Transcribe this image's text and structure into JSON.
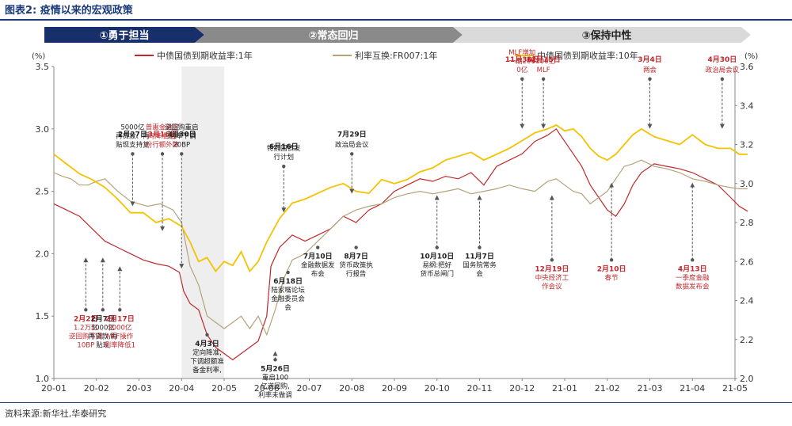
{
  "page": {
    "title": "图表2:  疫情以来的宏观政策",
    "source": "资料来源:新华社,华泰研究"
  },
  "colors": {
    "one_year": "#c0282d",
    "fr007": "#b5a27a",
    "ten_year": "#f5c200",
    "annotation_red": "#c0282d",
    "annotation_black": "#222222",
    "phase1_fill": "#17306b",
    "phase2_fill": "#8a8a8a",
    "phase3_fill": "#dadada",
    "accent": "#1a3a7a"
  },
  "phases": [
    {
      "label": "①勇于担当",
      "text_color": "#ffffff"
    },
    {
      "label": "②常态回归",
      "text_color": "#ffffff"
    },
    {
      "label": "③保持中性",
      "text_color": "#222222"
    }
  ],
  "chart_data": {
    "type": "line",
    "y_unit_left": "(%)",
    "y_unit_right": "(%)",
    "x_ticks": [
      "20-01",
      "20-02",
      "20-03",
      "20-04",
      "20-05",
      "20-06",
      "20-07",
      "20-08",
      "20-09",
      "20-10",
      "20-11",
      "20-12",
      "21-01",
      "21-02",
      "21-03",
      "21-04",
      "21-05"
    ],
    "y_left": {
      "min": 1.0,
      "max": 3.5,
      "ticks": [
        "1.0",
        "1.5",
        "2.0",
        "2.5",
        "3.0",
        "3.5"
      ]
    },
    "y_right": {
      "min": 2.0,
      "max": 3.6,
      "ticks": [
        "2.0",
        "2.2",
        "2.4",
        "2.6",
        "2.8",
        "3.0",
        "3.2",
        "3.4",
        "3.6"
      ]
    },
    "series": [
      {
        "name": "中债国债到期收益率:1年",
        "axis": "left",
        "color_key": "one_year",
        "x": [
          0,
          0.3,
          0.6,
          0.9,
          1.2,
          1.5,
          1.8,
          2.1,
          2.4,
          2.7,
          2.95,
          3.05,
          3.2,
          3.4,
          3.6,
          3.8,
          4.0,
          4.2,
          4.4,
          4.6,
          4.8,
          5.0,
          5.1,
          5.3,
          5.6,
          5.9,
          6.2,
          6.5,
          6.8,
          7.1,
          7.4,
          7.7,
          8.0,
          8.3,
          8.6,
          8.9,
          9.2,
          9.5,
          9.8,
          10.1,
          10.4,
          10.7,
          11.0,
          11.3,
          11.6,
          11.8,
          12.0,
          12.2,
          12.4,
          12.6,
          12.8,
          13.0,
          13.2,
          13.4,
          13.6,
          13.8,
          14.1,
          14.4,
          14.7,
          15.0,
          15.3,
          15.6,
          15.9,
          16.1,
          16.3
        ],
        "y": [
          2.4,
          2.35,
          2.3,
          2.2,
          2.1,
          2.05,
          2.0,
          1.95,
          1.92,
          1.9,
          1.85,
          1.7,
          1.6,
          1.55,
          1.35,
          1.25,
          1.2,
          1.15,
          1.2,
          1.25,
          1.3,
          1.5,
          1.9,
          2.05,
          2.15,
          2.1,
          2.15,
          2.2,
          2.3,
          2.25,
          2.35,
          2.4,
          2.5,
          2.55,
          2.6,
          2.58,
          2.62,
          2.6,
          2.65,
          2.55,
          2.7,
          2.75,
          2.8,
          2.9,
          2.95,
          3.0,
          2.9,
          2.8,
          2.7,
          2.55,
          2.45,
          2.35,
          2.3,
          2.4,
          2.55,
          2.65,
          2.72,
          2.7,
          2.68,
          2.65,
          2.6,
          2.55,
          2.45,
          2.38,
          2.34
        ]
      },
      {
        "name": "利率互换:FR007:1年",
        "axis": "left",
        "color_key": "fr007",
        "x": [
          0,
          0.2,
          0.4,
          0.6,
          0.8,
          1.0,
          1.2,
          1.5,
          1.8,
          2.0,
          2.2,
          2.5,
          2.8,
          3.0,
          3.2,
          3.4,
          3.6,
          3.8,
          4.0,
          4.2,
          4.4,
          4.6,
          4.8,
          5.0,
          5.2,
          5.4,
          5.6,
          5.9,
          6.2,
          6.5,
          6.8,
          7.1,
          7.4,
          7.7,
          8.0,
          8.3,
          8.6,
          8.9,
          9.2,
          9.5,
          9.8,
          10.1,
          10.4,
          10.7,
          11.0,
          11.3,
          11.6,
          11.8,
          12.0,
          12.2,
          12.4,
          12.6,
          12.8,
          13.0,
          13.2,
          13.4,
          13.6,
          13.8,
          14.1,
          14.4,
          14.7,
          15.0,
          15.3,
          15.6,
          15.9,
          16.1,
          16.3
        ],
        "y": [
          2.65,
          2.62,
          2.6,
          2.55,
          2.55,
          2.58,
          2.6,
          2.5,
          2.42,
          2.4,
          2.38,
          2.4,
          2.35,
          2.25,
          1.9,
          1.75,
          1.5,
          1.45,
          1.4,
          1.45,
          1.5,
          1.4,
          1.5,
          1.35,
          1.55,
          1.8,
          1.95,
          2.0,
          2.1,
          2.2,
          2.3,
          2.35,
          2.38,
          2.4,
          2.45,
          2.48,
          2.5,
          2.48,
          2.5,
          2.52,
          2.48,
          2.5,
          2.52,
          2.55,
          2.52,
          2.5,
          2.58,
          2.6,
          2.55,
          2.5,
          2.48,
          2.4,
          2.45,
          2.5,
          2.6,
          2.7,
          2.72,
          2.75,
          2.7,
          2.68,
          2.65,
          2.6,
          2.58,
          2.55,
          2.53,
          2.52,
          2.52
        ]
      },
      {
        "name": "中债国债到期收益率:10年",
        "axis": "right",
        "color_key": "ten_year",
        "x": [
          0,
          0.3,
          0.6,
          0.9,
          1.2,
          1.5,
          1.8,
          2.1,
          2.4,
          2.7,
          3.0,
          3.2,
          3.4,
          3.6,
          3.8,
          4.0,
          4.2,
          4.4,
          4.6,
          4.8,
          5.0,
          5.3,
          5.6,
          5.9,
          6.2,
          6.5,
          6.8,
          7.1,
          7.4,
          7.7,
          8.0,
          8.3,
          8.6,
          8.9,
          9.2,
          9.5,
          9.8,
          10.1,
          10.4,
          10.7,
          11.0,
          11.3,
          11.6,
          11.8,
          12.0,
          12.2,
          12.4,
          12.6,
          12.8,
          13.0,
          13.2,
          13.4,
          13.6,
          13.8,
          14.1,
          14.4,
          14.7,
          15.0,
          15.3,
          15.6,
          15.9,
          16.1,
          16.3
        ],
        "y": [
          3.15,
          3.1,
          3.05,
          3.02,
          2.98,
          2.92,
          2.85,
          2.85,
          2.8,
          2.82,
          2.78,
          2.7,
          2.6,
          2.62,
          2.55,
          2.6,
          2.58,
          2.65,
          2.55,
          2.6,
          2.7,
          2.82,
          2.9,
          2.92,
          2.95,
          2.98,
          3.0,
          2.96,
          2.95,
          3.02,
          3.0,
          3.02,
          3.06,
          3.08,
          3.12,
          3.14,
          3.16,
          3.12,
          3.15,
          3.18,
          3.22,
          3.26,
          3.28,
          3.3,
          3.27,
          3.28,
          3.24,
          3.18,
          3.14,
          3.12,
          3.15,
          3.2,
          3.25,
          3.28,
          3.24,
          3.22,
          3.2,
          3.25,
          3.2,
          3.18,
          3.18,
          3.15,
          3.15
        ]
      }
    ]
  },
  "annotations": [
    {
      "date": "2月2日",
      "text": "1.2万亿逆回购下调10BP",
      "color": "red",
      "x": 0.75,
      "y_anchor": 1.55,
      "arrow_from": 1.95
    },
    {
      "date": "2月7日",
      "text": "3000亿再贷款,再贴现",
      "color": "black",
      "x": 1.15,
      "y_anchor": 1.55,
      "arrow_from": 1.95
    },
    {
      "date": "2月17日",
      "text": "2000亿MLF操作利率降低10BP",
      "color": "red",
      "x": 1.55,
      "y_anchor": 1.55,
      "arrow_from": 1.88
    },
    {
      "date": "2月27日",
      "text": "5000亿再贷款、再贴现支持复产",
      "color": "black",
      "x": 1.85,
      "y_anchor": 2.8,
      "arrow_from": 2.4
    },
    {
      "date": "3月16日",
      "text": "普惠金融定向降准,股份行额外降准1百分点",
      "color": "red",
      "x": 2.55,
      "y_anchor": 2.8,
      "arrow_from": 2.2
    },
    {
      "date": "3月30日",
      "text": "逆回购重启,利率下调20BP",
      "color": "black",
      "x": 3.0,
      "y_anchor": 2.8,
      "arrow_from": 1.9
    },
    {
      "date": "4月3日",
      "text": "定向降准,下调超额准备金利率,再贷款再贴现1万亿",
      "color": "black",
      "x": 3.6,
      "y_anchor": 1.35,
      "arrow_from": 1.35
    },
    {
      "date": "5月26日",
      "text": "重启100亿逆回购,利率未做调整",
      "color": "black",
      "x": 5.2,
      "y_anchor": 1.15,
      "arrow_from": 1.2
    },
    {
      "date": "6月16日",
      "text": "特别国债发行计划",
      "color": "black",
      "x": 5.4,
      "y_anchor": 2.7,
      "arrow_from": 2.35
    },
    {
      "date": "6月18日",
      "text": "陆家嘴论坛金融委员会会",
      "color": "black",
      "x": 5.5,
      "y_anchor": 1.85,
      "arrow_from": 1.85
    },
    {
      "date": "7月10日",
      "text": "金融数据发布会",
      "color": "black",
      "x": 6.2,
      "y_anchor": 2.05,
      "arrow_from": 2.05
    },
    {
      "date": "7月29日",
      "text": "政治局会议",
      "color": "black",
      "x": 7.0,
      "y_anchor": 2.8,
      "arrow_from": 2.5
    },
    {
      "date": "8月7日",
      "text": "货币政策执行报告",
      "color": "black",
      "x": 7.1,
      "y_anchor": 2.05,
      "arrow_from": 2.05
    },
    {
      "date": "10月10日",
      "text": "易纲:把好货币总闸门",
      "color": "black",
      "x": 9.0,
      "y_anchor": 2.05,
      "arrow_from": 2.45
    },
    {
      "date": "11月7日",
      "text": "国务院常务会",
      "color": "black",
      "x": 10.0,
      "y_anchor": 2.05,
      "arrow_from": 2.45
    },
    {
      "date": "11月30日",
      "text": "MLF增加一期2000亿",
      "color": "red",
      "x": 11.0,
      "y_anchor": 3.4,
      "arrow_from": 3.02
    },
    {
      "date": "12月15日",
      "text": "9500亿MLF",
      "color": "red",
      "x": 11.5,
      "y_anchor": 3.4,
      "arrow_from": 3.02
    },
    {
      "date": "12月19日",
      "text": "中央经济工作会议",
      "color": "red",
      "x": 11.7,
      "y_anchor": 1.95,
      "arrow_from": 2.45
    },
    {
      "date": "2月10日",
      "text": "春节",
      "color": "red",
      "x": 13.1,
      "y_anchor": 1.95,
      "arrow_from": 2.55
    },
    {
      "date": "3月4日",
      "text": "两会",
      "color": "red",
      "x": 14.0,
      "y_anchor": 3.4,
      "arrow_from": 3.02
    },
    {
      "date": "4月13日",
      "text": "一季度金融数据发布会",
      "color": "red",
      "x": 15.0,
      "y_anchor": 1.95,
      "arrow_from": 2.55
    },
    {
      "date": "4月30日",
      "text": "政治局会议",
      "color": "red",
      "x": 15.7,
      "y_anchor": 3.4,
      "arrow_from": 3.02
    }
  ]
}
